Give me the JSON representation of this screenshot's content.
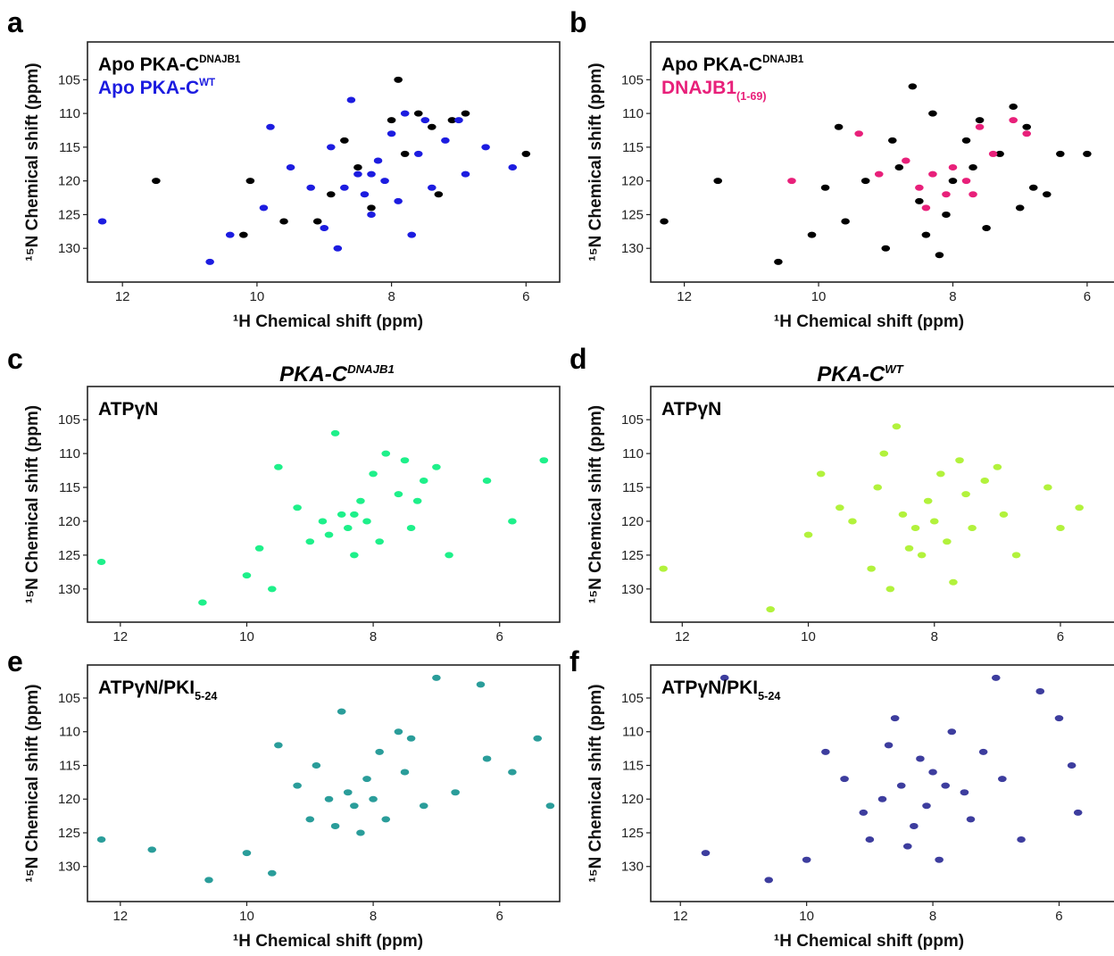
{
  "chart_data": [
    {
      "type": "scatter",
      "panel_label": "a",
      "xlabel": "¹H Chemical shift (ppm)",
      "ylabel": "¹⁵N Chemical shift (ppm)",
      "xlim": [
        12.52,
        5.5
      ],
      "ylim": [
        135,
        99.4
      ],
      "xticks": [
        12,
        10,
        8,
        6
      ],
      "yticks": [
        105,
        110,
        115,
        120,
        125,
        130
      ],
      "series": [
        {
          "name": "Apo PKA-C",
          "name_sup": "DNAJB1",
          "color": "#000000",
          "label_color": "#000000",
          "x": [
            10.1,
            10.2,
            9.6,
            8.9,
            8.5,
            8.0,
            7.6,
            7.4,
            7.1,
            6.9,
            7.8,
            8.3,
            8.7,
            9.1,
            7.3,
            6.0,
            11.5,
            7.9
          ],
          "y": [
            120,
            128,
            126,
            122,
            118,
            111,
            110,
            112,
            111,
            110,
            116,
            124,
            114,
            126,
            122,
            116,
            120,
            105
          ]
        },
        {
          "name": "Apo PKA-C",
          "name_sup": "WT",
          "color": "#1c1ce0",
          "label_color": "#1c1ce0",
          "x": [
            12.3,
            10.7,
            10.4,
            9.8,
            9.9,
            9.5,
            9.2,
            9.0,
            8.9,
            8.8,
            8.6,
            8.5,
            8.4,
            8.3,
            8.2,
            8.1,
            8.0,
            7.9,
            7.8,
            7.7,
            7.6,
            7.5,
            7.4,
            7.2,
            7.0,
            6.9,
            6.6,
            6.2,
            8.7,
            8.3
          ],
          "y": [
            126,
            132,
            128,
            112,
            124,
            118,
            121,
            127,
            115,
            130,
            108,
            119,
            122,
            125,
            117,
            120,
            113,
            123,
            110,
            128,
            116,
            111,
            121,
            114,
            111,
            119,
            115,
            118,
            121,
            119
          ]
        }
      ]
    },
    {
      "type": "scatter",
      "panel_label": "b",
      "xlabel": "¹H Chemical shift (ppm)",
      "ylabel": "¹⁵N Chemical shift (ppm)",
      "xlim": [
        12.5,
        5.6
      ],
      "ylim": [
        135,
        99.4
      ],
      "xticks": [
        12,
        10,
        8,
        6
      ],
      "yticks": [
        105,
        110,
        115,
        120,
        125,
        130
      ],
      "series": [
        {
          "name": "Apo PKA-C",
          "name_sup": "DNAJB1",
          "color": "#000000",
          "label_color": "#000000",
          "x": [
            12.3,
            10.6,
            10.1,
            9.7,
            9.6,
            9.3,
            9.0,
            8.8,
            8.6,
            8.5,
            8.3,
            8.1,
            8.0,
            7.8,
            7.6,
            7.5,
            7.3,
            7.1,
            6.9,
            6.8,
            6.4,
            6.0,
            8.9,
            8.2,
            7.7,
            9.9,
            8.4,
            7.0,
            6.6,
            11.5
          ],
          "y": [
            126,
            132,
            128,
            112,
            126,
            120,
            130,
            118,
            106,
            123,
            110,
            125,
            120,
            114,
            111,
            127,
            116,
            109,
            112,
            121,
            116,
            116,
            114,
            131,
            118,
            121,
            128,
            124,
            122,
            120
          ]
        },
        {
          "name": "DNAJB1",
          "name_sub": "(1-69)",
          "color": "#e8207a",
          "label_color": "#e8207a",
          "x": [
            10.4,
            9.4,
            9.1,
            8.7,
            8.5,
            8.3,
            8.1,
            8.0,
            7.8,
            7.6,
            7.4,
            7.1,
            6.9,
            7.7,
            8.4
          ],
          "y": [
            120,
            113,
            119,
            117,
            121,
            119,
            122,
            118,
            120,
            112,
            116,
            111,
            113,
            122,
            124
          ]
        }
      ]
    },
    {
      "type": "scatter",
      "panel_label": "c",
      "title": "PKA-C",
      "title_sup": "DNAJB1",
      "ylabel": "¹⁵N Chemical shift (ppm)",
      "xlim": [
        12.52,
        5.05
      ],
      "ylim": [
        134.9,
        100.1
      ],
      "xticks": [
        12,
        10,
        8,
        6
      ],
      "yticks": [
        105,
        110,
        115,
        120,
        125,
        130
      ],
      "series": [
        {
          "name": "ATPγN",
          "color": "#1ef08a",
          "label_color": "#000000",
          "x": [
            12.3,
            10.7,
            10.0,
            9.6,
            9.5,
            9.2,
            9.0,
            8.8,
            8.6,
            8.5,
            8.4,
            8.3,
            8.2,
            8.1,
            8.0,
            7.9,
            7.8,
            7.6,
            7.5,
            7.4,
            7.2,
            7.0,
            6.8,
            6.2,
            5.8,
            5.3,
            8.7,
            8.3,
            9.8,
            7.3
          ],
          "y": [
            126,
            132,
            128,
            130,
            112,
            118,
            123,
            120,
            107,
            119,
            121,
            125,
            117,
            120,
            113,
            123,
            110,
            116,
            111,
            121,
            114,
            112,
            125,
            114,
            120,
            111,
            122,
            119,
            124,
            117
          ]
        }
      ]
    },
    {
      "type": "scatter",
      "panel_label": "d",
      "title": "PKA-C",
      "title_sup": "WT",
      "ylabel": "¹⁵N Chemical shift (ppm)",
      "xlim": [
        12.5,
        5.15
      ],
      "ylim": [
        134.9,
        100.1
      ],
      "xticks": [
        12,
        10,
        8,
        6
      ],
      "yticks": [
        105,
        110,
        115,
        120,
        125,
        130
      ],
      "series": [
        {
          "name": "ATPγN",
          "color": "#b2f23c",
          "label_color": "#000000",
          "x": [
            12.3,
            10.6,
            10.0,
            9.8,
            9.3,
            9.0,
            8.9,
            8.7,
            8.6,
            8.5,
            8.3,
            8.2,
            8.1,
            8.0,
            7.9,
            7.8,
            7.6,
            7.5,
            7.4,
            7.2,
            7.0,
            6.9,
            6.7,
            6.2,
            6.0,
            5.7,
            8.4,
            8.8,
            9.5,
            7.7
          ],
          "y": [
            127,
            133,
            122,
            113,
            120,
            127,
            115,
            130,
            106,
            119,
            121,
            125,
            117,
            120,
            113,
            123,
            111,
            116,
            121,
            114,
            112,
            119,
            125,
            115,
            121,
            118,
            124,
            110,
            118,
            129
          ]
        }
      ]
    },
    {
      "type": "scatter",
      "panel_label": "e",
      "xlabel": "¹H Chemical shift (ppm)",
      "ylabel": "¹⁵N Chemical shift (ppm)",
      "xlim": [
        12.52,
        5.05
      ],
      "ylim": [
        135.2,
        100.1
      ],
      "xticks": [
        12,
        10,
        8,
        6
      ],
      "yticks": [
        105,
        110,
        115,
        120,
        125,
        130
      ],
      "series": [
        {
          "name": "ATPγN/PKI",
          "name_sub": "5-24",
          "color": "#2a9d9a",
          "label_color": "#000000",
          "x": [
            12.3,
            11.5,
            10.6,
            10.0,
            9.6,
            9.5,
            9.2,
            9.0,
            8.9,
            8.7,
            8.5,
            8.4,
            8.3,
            8.2,
            8.1,
            8.0,
            7.9,
            7.8,
            7.6,
            7.5,
            7.4,
            7.2,
            7.0,
            6.7,
            6.3,
            6.2,
            5.8,
            5.4,
            5.2,
            8.6
          ],
          "y": [
            126,
            127.5,
            132,
            128,
            131,
            112,
            118,
            123,
            115,
            120,
            107,
            119,
            121,
            125,
            117,
            120,
            113,
            123,
            110,
            116,
            111,
            121,
            102,
            119,
            103,
            114,
            116,
            111,
            121,
            124
          ]
        }
      ]
    },
    {
      "type": "scatter",
      "panel_label": "f",
      "xlabel": "¹H Chemical shift (ppm)",
      "ylabel": "¹⁵N Chemical shift (ppm)",
      "xlim": [
        12.47,
        5.13
      ],
      "ylim": [
        135.2,
        100.1
      ],
      "xticks": [
        12,
        10,
        8,
        6
      ],
      "yticks": [
        105,
        110,
        115,
        120,
        125,
        130
      ],
      "series": [
        {
          "name": "ATPγN/PKI",
          "name_sub": "5-24",
          "color": "#3d3d9e",
          "label_color": "#000000",
          "x": [
            11.6,
            11.3,
            10.6,
            10.0,
            9.7,
            9.4,
            9.1,
            9.0,
            8.8,
            8.6,
            8.5,
            8.3,
            8.2,
            8.1,
            8.0,
            7.9,
            7.7,
            7.5,
            7.4,
            7.2,
            7.0,
            6.9,
            6.6,
            6.3,
            6.0,
            5.8,
            5.7,
            8.7,
            8.4,
            7.8
          ],
          "y": [
            128,
            102,
            132,
            129,
            113,
            117,
            122,
            126,
            120,
            108,
            118,
            124,
            114,
            121,
            116,
            129,
            110,
            119,
            123,
            113,
            102,
            117,
            126,
            104,
            108,
            115,
            122,
            112,
            127,
            118
          ]
        }
      ]
    }
  ]
}
